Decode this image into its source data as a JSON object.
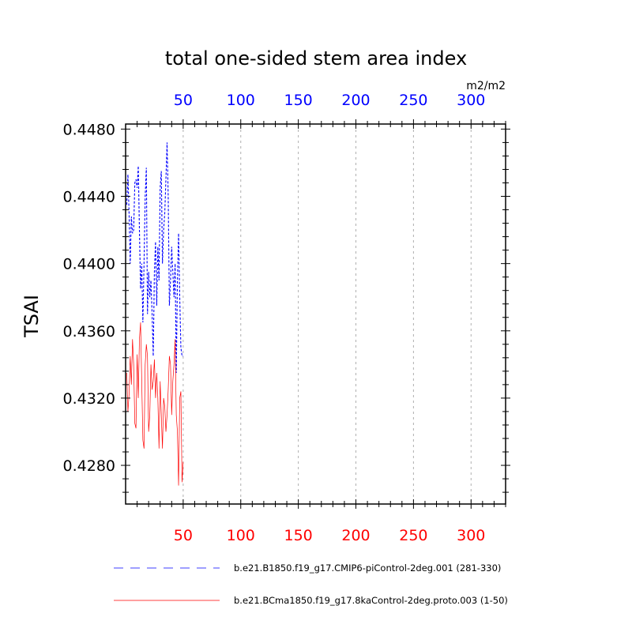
{
  "chart_data": {
    "type": "line",
    "title": "total one-sided stem area index",
    "units": "m2/m2",
    "ylabel": "TSAI",
    "xlim": [
      0,
      330
    ],
    "ylim": [
      0.4257,
      0.4483
    ],
    "y_ticks": [
      0.428,
      0.432,
      0.436,
      0.44,
      0.444,
      0.448
    ],
    "y_tick_labels": [
      "0.4280",
      "0.4320",
      "0.4360",
      "0.4400",
      "0.4440",
      "0.4480"
    ],
    "x_ticks": [
      50,
      100,
      150,
      200,
      250,
      300
    ],
    "x_tick_labels": [
      "50",
      "100",
      "150",
      "200",
      "250",
      "300"
    ],
    "top_axis_color": "#0000ff",
    "bottom_axis_color": "#ff0000",
    "vertical_grid": true,
    "legend_position": "bottom",
    "series": [
      {
        "name": "b.e21.B1850.f19_g17.CMIP6-piControl-2deg.001 (281-330)",
        "color": "#0000ff",
        "dash": "dashed",
        "x": [
          1,
          2,
          3,
          4,
          5,
          6,
          7,
          8,
          9,
          10,
          11,
          12,
          13,
          14,
          15,
          16,
          17,
          18,
          19,
          20,
          21,
          22,
          23,
          24,
          25,
          26,
          27,
          28,
          29,
          30,
          31,
          32,
          33,
          34,
          35,
          36,
          37,
          38,
          39,
          40,
          41,
          42,
          43,
          44,
          45,
          46,
          47,
          48,
          49,
          50
        ],
        "y": [
          0.4435,
          0.4453,
          0.443,
          0.44,
          0.4428,
          0.4418,
          0.442,
          0.4448,
          0.445,
          0.4445,
          0.4458,
          0.442,
          0.4385,
          0.44,
          0.4365,
          0.44,
          0.444,
          0.4457,
          0.437,
          0.4395,
          0.438,
          0.439,
          0.437,
          0.4345,
          0.4395,
          0.4413,
          0.4375,
          0.441,
          0.439,
          0.4445,
          0.4455,
          0.44,
          0.442,
          0.443,
          0.445,
          0.4472,
          0.444,
          0.4375,
          0.439,
          0.441,
          0.4395,
          0.438,
          0.44,
          0.4335,
          0.439,
          0.4418,
          0.438,
          0.435,
          0.4345,
          0.4345
        ]
      },
      {
        "name": "b.e21.BCma1850.f19_g17.8kaControl-2deg.proto.003 (1-50)",
        "color": "#ff0000",
        "dash": "solid",
        "x": [
          1,
          2,
          3,
          4,
          5,
          6,
          7,
          8,
          9,
          10,
          11,
          12,
          13,
          14,
          15,
          16,
          17,
          18,
          19,
          20,
          21,
          22,
          23,
          24,
          25,
          26,
          27,
          28,
          29,
          30,
          31,
          32,
          33,
          34,
          35,
          36,
          37,
          38,
          39,
          40,
          41,
          42,
          43,
          44,
          45,
          46,
          47,
          48,
          49,
          50
        ],
        "y": [
          0.4335,
          0.4312,
          0.4322,
          0.4345,
          0.4328,
          0.4355,
          0.434,
          0.4305,
          0.4302,
          0.4346,
          0.432,
          0.4355,
          0.4365,
          0.433,
          0.4295,
          0.429,
          0.434,
          0.4352,
          0.4345,
          0.43,
          0.431,
          0.434,
          0.4325,
          0.433,
          0.4343,
          0.432,
          0.4335,
          0.432,
          0.429,
          0.433,
          0.431,
          0.429,
          0.432,
          0.4315,
          0.43,
          0.431,
          0.4325,
          0.4345,
          0.434,
          0.431,
          0.433,
          0.434,
          0.4355,
          0.431,
          0.43,
          0.4268,
          0.432,
          0.4324,
          0.427,
          0.4282
        ]
      }
    ]
  }
}
